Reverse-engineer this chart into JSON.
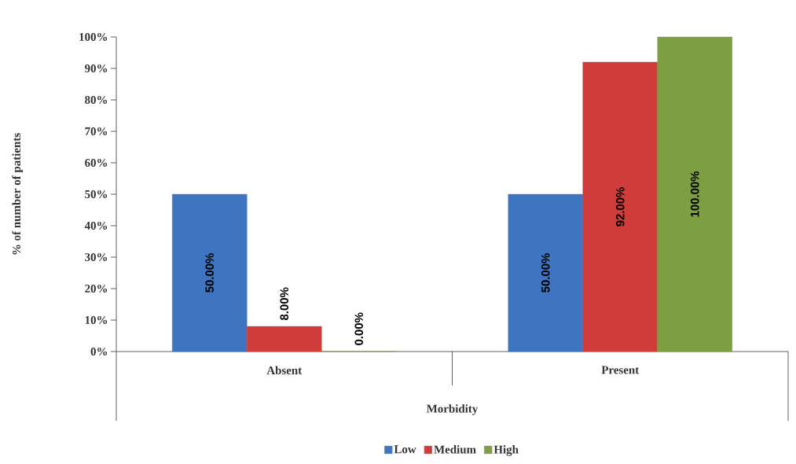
{
  "chart_data": {
    "type": "bar",
    "xlabel": "Morbidity",
    "ylabel": "% of number of patients",
    "categories": [
      "Absent",
      "Present"
    ],
    "series": [
      {
        "name": "Low",
        "color": "#3e74c0",
        "values": [
          50,
          50
        ],
        "value_labels": [
          "50.00%",
          "50.00%"
        ]
      },
      {
        "name": "Medium",
        "color": "#cf3c3a",
        "values": [
          8,
          92
        ],
        "value_labels": [
          "8.00%",
          "92.00%"
        ]
      },
      {
        "name": "High",
        "color": "#7e9e42",
        "values": [
          0,
          100
        ],
        "value_labels": [
          "0.00%",
          "100.00%"
        ]
      }
    ],
    "ylim": [
      0,
      100
    ],
    "yticks": [
      {
        "value": 0,
        "label": "0%"
      },
      {
        "value": 10,
        "label": "10%"
      },
      {
        "value": 20,
        "label": "20%"
      },
      {
        "value": 30,
        "label": "30%"
      },
      {
        "value": 40,
        "label": "40%"
      },
      {
        "value": 50,
        "label": "50%"
      },
      {
        "value": 60,
        "label": "60%"
      },
      {
        "value": 70,
        "label": "70%"
      },
      {
        "value": 80,
        "label": "80%"
      },
      {
        "value": 90,
        "label": "90%"
      },
      {
        "value": 100,
        "label": "100%"
      }
    ],
    "legend": "bottom"
  }
}
